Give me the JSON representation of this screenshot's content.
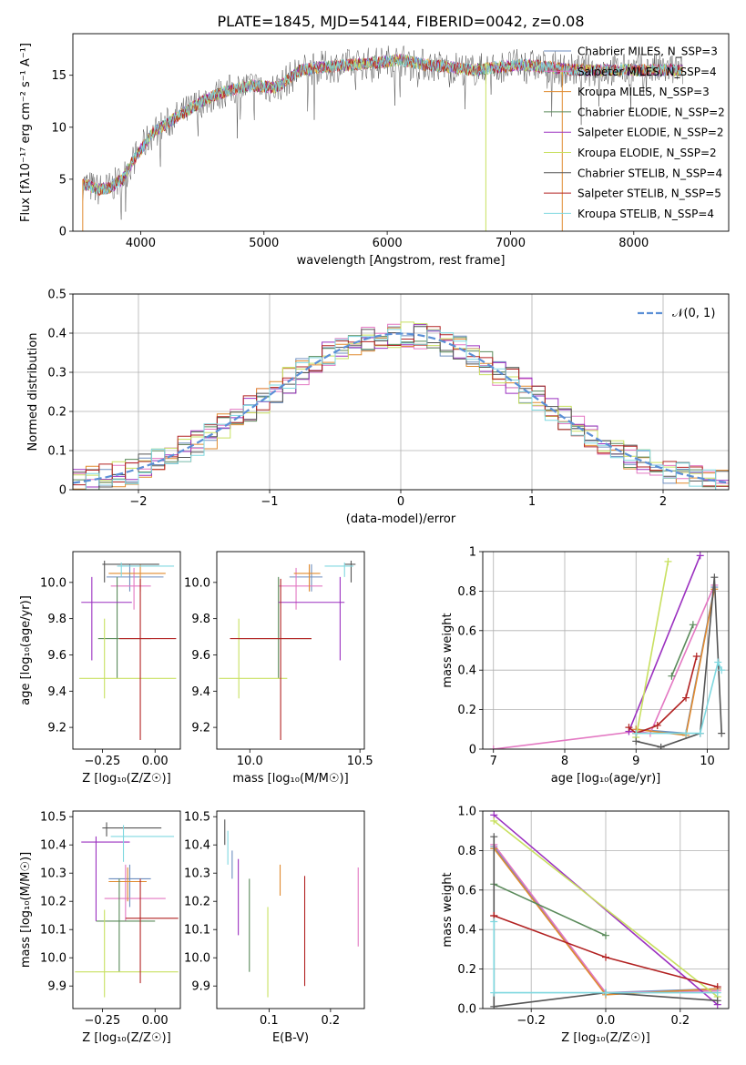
{
  "figure": {
    "title": "PLATE=1845, MJD=54144, FIBERID=0042, z=0.08"
  },
  "series_colors": [
    "#6c8ebf",
    "#e377c2",
    "#e08a2e",
    "#5a8a5a",
    "#9b30c0",
    "#c8e060",
    "#555555",
    "#b22222",
    "#7fd8e0"
  ],
  "chart_data": [
    {
      "id": "spectrum",
      "type": "line",
      "title": "PLATE=1845, MJD=54144, FIBERID=0042, z=0.08",
      "xlabel": "wavelength [Angstrom, rest frame]",
      "ylabel": "Flux [fλ10⁻¹⁷ erg cm⁻² s⁻¹ A⁻¹]",
      "xlim": [
        3450,
        8770
      ],
      "ylim": [
        0,
        19
      ],
      "xticks": [
        4000,
        5000,
        6000,
        7000,
        8000
      ],
      "yticks": [
        0,
        5,
        10,
        15
      ],
      "grid": false,
      "legend_position": "top-right",
      "legend": [
        "Chabrier MILES, N_SSP=3",
        "Salpeter MILES, N_SSP=4",
        "Kroupa MILES, N_SSP=3",
        "Chabrier ELODIE, N_SSP=2",
        "Salpeter ELODIE, N_SSP=2",
        "Kroupa ELODIE, N_SSP=2",
        "Chabrier STELIB, N_SSP=4",
        "Salpeter STELIB, N_SSP=5",
        "Kroupa STELIB, N_SSP=4"
      ],
      "trend": {
        "x": [
          3550,
          3650,
          3750,
          3850,
          3950,
          4100,
          4300,
          4500,
          4700,
          4900,
          5100,
          5300,
          5500,
          5700,
          5900,
          6100,
          6300,
          6500,
          6700,
          6900,
          7100,
          7300,
          7500
        ],
        "y": [
          4.5,
          4.0,
          4.2,
          5.0,
          7.0,
          9.5,
          11.0,
          12.5,
          13.5,
          14.0,
          13.8,
          15.5,
          15.8,
          16.0,
          16.2,
          16.5,
          16.0,
          15.8,
          15.5,
          15.8,
          16.0,
          15.8,
          15.5
        ]
      }
    },
    {
      "id": "residuals",
      "type": "bar",
      "xlabel": "(data-model)/error",
      "ylabel": "Normed distribution",
      "xlim": [
        -2.5,
        2.5
      ],
      "ylim": [
        0,
        0.5
      ],
      "xticks": [
        -2,
        -1,
        0,
        1,
        2
      ],
      "yticks": [
        0.0,
        0.1,
        0.2,
        0.3,
        0.4,
        0.5
      ],
      "grid": true,
      "legend_position": "top-right",
      "reference_curve": {
        "label": "𝒩(0, 1)",
        "mean": 0,
        "sigma": 1
      }
    },
    {
      "id": "age-vs-z",
      "type": "scatter",
      "xlabel": "Z [log₁₀(Z/Z☉)]",
      "ylabel": "age  [log₁₀(age/yr)]",
      "xlim": [
        -0.39,
        0.12
      ],
      "ylim": [
        9.08,
        10.17
      ],
      "xticks": [
        -0.25,
        0.0
      ],
      "yticks": [
        9.2,
        9.4,
        9.6,
        9.8,
        10.0
      ],
      "grid": false,
      "errorbars": [
        {
          "x": -0.12,
          "y": 10.03,
          "x_lo": -0.23,
          "x_hi": 0.04,
          "y_lo": 9.95,
          "y_hi": 10.1
        },
        {
          "x": -0.1,
          "y": 9.98,
          "x_lo": -0.21,
          "x_hi": -0.02,
          "y_lo": 9.85,
          "y_hi": 10.08
        },
        {
          "x": -0.07,
          "y": 10.05,
          "x_lo": -0.22,
          "x_hi": 0.05,
          "y_lo": 9.95,
          "y_hi": 10.1
        },
        {
          "x": -0.18,
          "y": 9.69,
          "x_lo": -0.27,
          "x_hi": -0.02,
          "y_lo": 9.47,
          "y_hi": 10.03
        },
        {
          "x": -0.3,
          "y": 9.89,
          "x_lo": -0.35,
          "x_hi": -0.11,
          "y_lo": 9.57,
          "y_hi": 10.03
        },
        {
          "x": -0.24,
          "y": 9.47,
          "x_lo": -0.36,
          "x_hi": 0.1,
          "y_lo": 9.36,
          "y_hi": 9.8
        },
        {
          "x": -0.24,
          "y": 10.1,
          "x_lo": -0.25,
          "x_hi": 0.02,
          "y_lo": 10.0,
          "y_hi": 10.12
        },
        {
          "x": -0.07,
          "y": 9.69,
          "x_lo": -0.17,
          "x_hi": 0.1,
          "y_lo": 9.13,
          "y_hi": 10.02
        },
        {
          "x": -0.16,
          "y": 10.09,
          "x_lo": -0.18,
          "x_hi": 0.09,
          "y_lo": 10.03,
          "y_hi": 10.11
        }
      ]
    },
    {
      "id": "age-vs-mass",
      "type": "scatter",
      "xlabel": "mass [log₁₀(M/M☉)]",
      "ylabel": "",
      "xlim": [
        9.85,
        10.52
      ],
      "ylim": [
        9.08,
        10.17
      ],
      "xticks": [
        10.0,
        10.5
      ],
      "yticks": [
        9.2,
        9.4,
        9.6,
        9.8,
        10.0
      ],
      "grid": false,
      "errorbars": [
        {
          "x": 10.28,
          "y": 10.03,
          "x_lo": 10.18,
          "x_hi": 10.33,
          "y_lo": 9.95,
          "y_hi": 10.1
        },
        {
          "x": 10.21,
          "y": 9.98,
          "x_lo": 10.13,
          "x_hi": 10.33,
          "y_lo": 9.85,
          "y_hi": 10.08
        },
        {
          "x": 10.27,
          "y": 10.05,
          "x_lo": 10.2,
          "x_hi": 10.32,
          "y_lo": 9.95,
          "y_hi": 10.1
        },
        {
          "x": 10.13,
          "y": 9.69,
          "x_lo": 9.95,
          "x_hi": 10.28,
          "y_lo": 9.47,
          "y_hi": 10.03
        },
        {
          "x": 10.41,
          "y": 9.89,
          "x_lo": 10.13,
          "x_hi": 10.43,
          "y_lo": 9.57,
          "y_hi": 10.03
        },
        {
          "x": 9.95,
          "y": 9.47,
          "x_lo": 9.86,
          "x_hi": 10.17,
          "y_lo": 9.36,
          "y_hi": 9.8
        },
        {
          "x": 10.46,
          "y": 10.1,
          "x_lo": 10.43,
          "x_hi": 10.48,
          "y_lo": 10.0,
          "y_hi": 10.12
        },
        {
          "x": 10.14,
          "y": 9.69,
          "x_lo": 9.91,
          "x_hi": 10.28,
          "y_lo": 9.13,
          "y_hi": 10.02
        },
        {
          "x": 10.43,
          "y": 10.09,
          "x_lo": 10.34,
          "x_hi": 10.47,
          "y_lo": 10.03,
          "y_hi": 10.11
        }
      ]
    },
    {
      "id": "weight-vs-age",
      "type": "line",
      "xlabel": "age  [log₁₀(age/yr)]",
      "ylabel": "mass weight",
      "xlim": [
        6.85,
        10.3
      ],
      "ylim": [
        0,
        1.0
      ],
      "xticks": [
        7,
        8,
        9,
        10
      ],
      "yticks": [
        0.0,
        0.2,
        0.4,
        0.6,
        0.8,
        1.0
      ],
      "grid": true,
      "series": [
        {
          "x": [
            9.0,
            9.7,
            10.1
          ],
          "y": [
            0.1,
            0.08,
            0.82
          ]
        },
        {
          "x": [
            7.0,
            9.0,
            9.2,
            10.1
          ],
          "y": [
            0.0,
            0.09,
            0.08,
            0.83
          ]
        },
        {
          "x": [
            9.0,
            9.7,
            10.1
          ],
          "y": [
            0.1,
            0.07,
            0.81
          ]
        },
        {
          "x": [
            9.5,
            9.8
          ],
          "y": [
            0.37,
            0.63
          ]
        },
        {
          "x": [
            8.9,
            9.9
          ],
          "y": [
            0.09,
            0.98
          ]
        },
        {
          "x": [
            9.0,
            9.45
          ],
          "y": [
            0.06,
            0.95
          ]
        },
        {
          "x": [
            9.0,
            9.35,
            9.9,
            10.1,
            10.2
          ],
          "y": [
            0.04,
            0.01,
            0.08,
            0.87,
            0.08
          ]
        },
        {
          "x": [
            8.9,
            9.0,
            9.3,
            9.7,
            9.85
          ],
          "y": [
            0.11,
            0.08,
            0.12,
            0.26,
            0.47
          ]
        },
        {
          "x": [
            9.0,
            9.7,
            9.9,
            10.15,
            10.2
          ],
          "y": [
            0.08,
            0.08,
            0.08,
            0.44,
            0.4
          ]
        }
      ]
    },
    {
      "id": "mass-vs-z",
      "type": "scatter",
      "xlabel": "Z [log₁₀(Z/Z☉)]",
      "ylabel": "mass [log₁₀(M/M☉)]",
      "xlim": [
        -0.39,
        0.12
      ],
      "ylim": [
        9.82,
        10.52
      ],
      "xticks": [
        -0.25,
        0.0
      ],
      "yticks": [
        9.9,
        10.0,
        10.1,
        10.2,
        10.3,
        10.4,
        10.5
      ],
      "grid": false,
      "errorbars": [
        {
          "x": -0.12,
          "y": 10.28,
          "x_lo": -0.22,
          "x_hi": -0.02,
          "y_lo": 10.18,
          "y_hi": 10.33
        },
        {
          "x": -0.14,
          "y": 10.21,
          "x_lo": -0.24,
          "x_hi": 0.05,
          "y_lo": 10.13,
          "y_hi": 10.33
        },
        {
          "x": -0.13,
          "y": 10.27,
          "x_lo": -0.22,
          "x_hi": -0.04,
          "y_lo": 10.2,
          "y_hi": 10.32
        },
        {
          "x": -0.17,
          "y": 10.13,
          "x_lo": -0.28,
          "x_hi": 0.0,
          "y_lo": 9.95,
          "y_hi": 10.28
        },
        {
          "x": -0.28,
          "y": 10.41,
          "x_lo": -0.35,
          "x_hi": -0.12,
          "y_lo": 10.13,
          "y_hi": 10.43
        },
        {
          "x": -0.24,
          "y": 9.95,
          "x_lo": -0.38,
          "x_hi": 0.11,
          "y_lo": 9.86,
          "y_hi": 10.17
        },
        {
          "x": -0.23,
          "y": 10.46,
          "x_lo": -0.25,
          "x_hi": 0.03,
          "y_lo": 10.43,
          "y_hi": 10.48
        },
        {
          "x": -0.07,
          "y": 10.14,
          "x_lo": -0.14,
          "x_hi": 0.11,
          "y_lo": 9.91,
          "y_hi": 10.28
        },
        {
          "x": -0.15,
          "y": 10.43,
          "x_lo": -0.21,
          "x_hi": 0.09,
          "y_lo": 10.34,
          "y_hi": 10.47
        }
      ]
    },
    {
      "id": "mass-vs-ebv",
      "type": "scatter",
      "xlabel": "E(B-V)",
      "ylabel": "",
      "xlim": [
        0.015,
        0.255
      ],
      "ylim": [
        9.82,
        10.52
      ],
      "xticks": [
        0.1,
        0.2
      ],
      "yticks": [
        9.9,
        10.0,
        10.1,
        10.2,
        10.3,
        10.4,
        10.5
      ],
      "grid": false,
      "errorbars": [
        {
          "x": 0.04,
          "y": 10.33,
          "x_lo": 0.04,
          "x_hi": 0.04,
          "y_lo": 10.28,
          "y_hi": 10.38
        },
        {
          "x": 0.245,
          "y": 10.18,
          "x_lo": 0.245,
          "x_hi": 0.245,
          "y_lo": 10.04,
          "y_hi": 10.32
        },
        {
          "x": 0.118,
          "y": 10.27,
          "x_lo": 0.118,
          "x_hi": 0.118,
          "y_lo": 10.22,
          "y_hi": 10.33
        },
        {
          "x": 0.068,
          "y": 10.12,
          "x_lo": 0.068,
          "x_hi": 0.068,
          "y_lo": 9.95,
          "y_hi": 10.28
        },
        {
          "x": 0.05,
          "y": 10.22,
          "x_lo": 0.05,
          "x_hi": 0.05,
          "y_lo": 10.08,
          "y_hi": 10.35
        },
        {
          "x": 0.098,
          "y": 10.04,
          "x_lo": 0.098,
          "x_hi": 0.098,
          "y_lo": 9.86,
          "y_hi": 10.18
        },
        {
          "x": 0.028,
          "y": 10.44,
          "x_lo": 0.028,
          "x_hi": 0.028,
          "y_lo": 10.4,
          "y_hi": 10.49
        },
        {
          "x": 0.158,
          "y": 10.09,
          "x_lo": 0.158,
          "x_hi": 0.158,
          "y_lo": 9.9,
          "y_hi": 10.29
        },
        {
          "x": 0.033,
          "y": 10.4,
          "x_lo": 0.033,
          "x_hi": 0.033,
          "y_lo": 10.33,
          "y_hi": 10.45
        }
      ]
    },
    {
      "id": "weight-vs-z",
      "type": "line",
      "xlabel": "Z [log₁₀(Z/Z☉)]",
      "ylabel": "mass weight",
      "xlim": [
        -0.33,
        0.33
      ],
      "ylim": [
        0,
        1.0
      ],
      "xticks": [
        -0.2,
        0.0,
        0.2
      ],
      "yticks": [
        0.0,
        0.2,
        0.4,
        0.6,
        0.8,
        1.0
      ],
      "grid": true,
      "series": [
        {
          "x": [
            -0.3,
            0.0,
            0.3
          ],
          "y": [
            0.82,
            0.08,
            0.1
          ]
        },
        {
          "x": [
            -0.3,
            0.0,
            0.3
          ],
          "y": [
            0.83,
            0.08,
            0.09
          ]
        },
        {
          "x": [
            -0.3,
            0.0,
            0.3
          ],
          "y": [
            0.81,
            0.07,
            0.1
          ]
        },
        {
          "x": [
            -0.3,
            0.0
          ],
          "y": [
            0.63,
            0.37
          ]
        },
        {
          "x": [
            -0.3,
            0.3
          ],
          "y": [
            0.98,
            0.02
          ]
        },
        {
          "x": [
            -0.3,
            0.3
          ],
          "y": [
            0.95,
            0.06
          ]
        },
        {
          "x": [
            -0.3,
            -0.3,
            0.0,
            0.3
          ],
          "y": [
            0.87,
            0.01,
            0.08,
            0.04
          ]
        },
        {
          "x": [
            -0.3,
            -0.3,
            0.0,
            0.3
          ],
          "y": [
            0.47,
            0.47,
            0.26,
            0.11
          ]
        },
        {
          "x": [
            -0.3,
            -0.3,
            0.0,
            0.0,
            0.3
          ],
          "y": [
            0.44,
            0.08,
            0.08,
            0.08,
            0.08
          ]
        }
      ]
    }
  ]
}
